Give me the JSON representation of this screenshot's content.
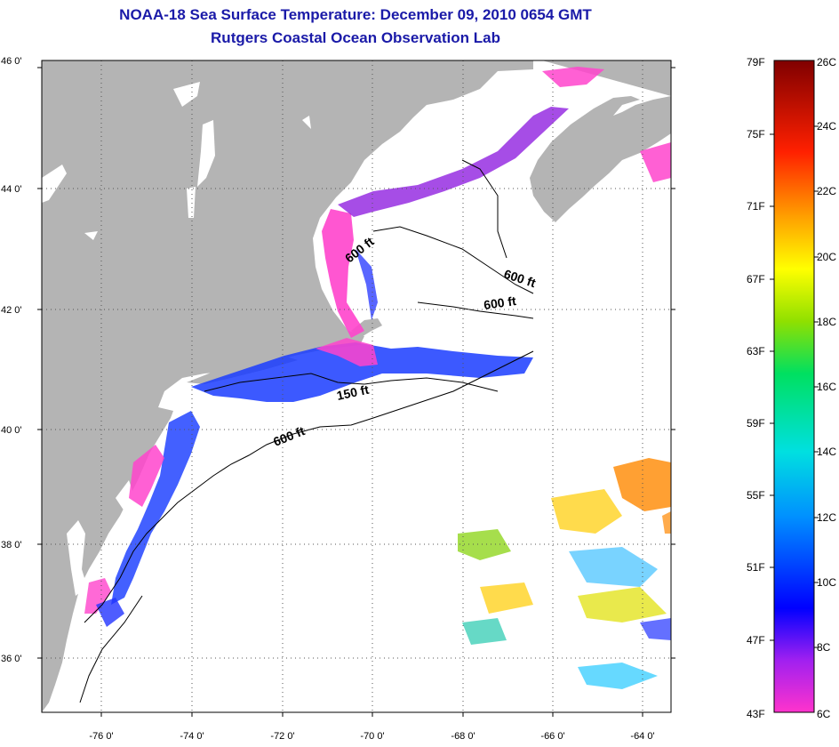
{
  "header": {
    "title": "NOAA-18 Sea Surface Temperature:  December 09, 2010 0654 GMT",
    "subtitle": "Rutgers Coastal Ocean Observation Lab"
  },
  "map": {
    "lon_labels": [
      "-76 0'",
      "-74 0'",
      "-72 0'",
      "-70 0'",
      "-68 0'",
      "-66 0'",
      "-64 0'"
    ],
    "lat_labels": [
      "46 0'",
      "44 0'",
      "42 0'",
      "40 0'",
      "38 0'",
      "36 0'"
    ],
    "contour_labels": [
      "600 ft",
      "600 ft",
      "600 ft",
      "150 ft",
      "600 ft"
    ],
    "colors": {
      "land": "#b4b4b4",
      "ocean_nodata": "#ffffff"
    }
  },
  "colorbar": {
    "fahrenheit": [
      "79F",
      "75F",
      "71F",
      "67F",
      "63F",
      "59F",
      "55F",
      "51F",
      "47F",
      "43F"
    ],
    "celsius": [
      "26C",
      "24C",
      "22C",
      "20C",
      "18C",
      "16C",
      "14C",
      "12C",
      "10C",
      "8C",
      "6C"
    ]
  }
}
